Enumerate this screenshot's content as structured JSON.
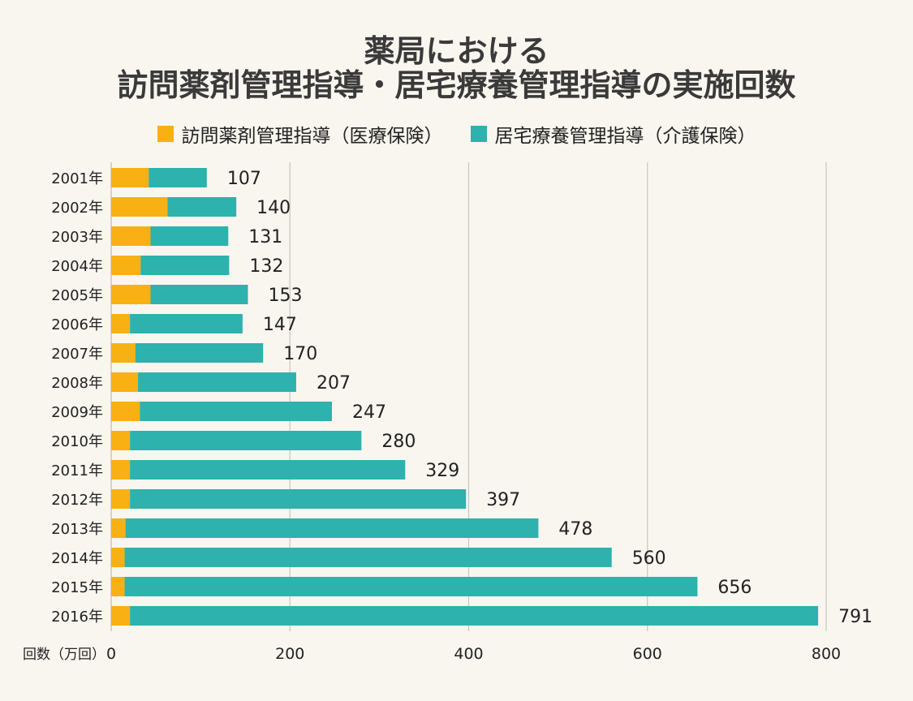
{
  "chart_data": {
    "type": "bar",
    "orientation": "horizontal",
    "stacked": true,
    "title_lines": [
      "薬局における",
      "訪問薬剤管理指導・居宅療養管理指導の実施回数"
    ],
    "xlabel": "回数（万回）",
    "xlim": [
      0,
      800
    ],
    "xticks": [
      0,
      200,
      400,
      600,
      800
    ],
    "grid": "vertical",
    "legend_position": "top",
    "categories": [
      "2001年",
      "2002年",
      "2003年",
      "2004年",
      "2005年",
      "2006年",
      "2007年",
      "2008年",
      "2009年",
      "2010年",
      "2011年",
      "2012年",
      "2013年",
      "2014年",
      "2015年",
      "2016年"
    ],
    "series": [
      {
        "name": "訪問薬剤管理指導（医療保険）",
        "color": "#f9b012",
        "values": [
          42,
          63,
          44,
          33,
          44,
          21,
          27,
          30,
          32,
          21,
          21,
          21,
          16,
          15,
          15,
          21
        ]
      },
      {
        "name": "居宅療養管理指導（介護保険）",
        "color": "#2db2ad",
        "values": [
          65,
          77,
          87,
          99,
          109,
          126,
          143,
          177,
          215,
          259,
          308,
          376,
          462,
          545,
          641,
          770
        ]
      }
    ],
    "totals": [
      107,
      140,
      131,
      132,
      153,
      147,
      170,
      207,
      247,
      280,
      329,
      397,
      478,
      560,
      656,
      791
    ]
  }
}
